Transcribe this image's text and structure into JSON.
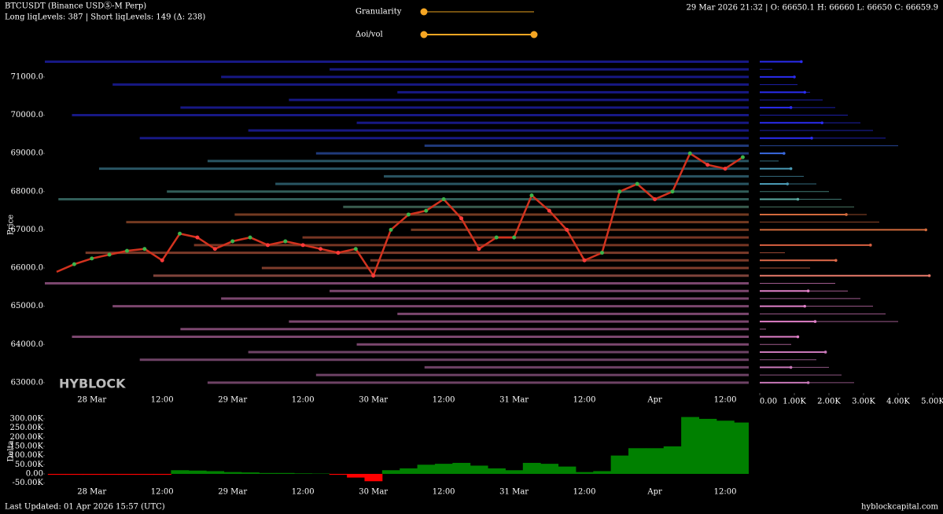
{
  "header": {
    "title": "BTCUSDT (Binance USDⓈ-M Perp)",
    "subtitle": "Long liqLevels: 387 | Short liqLevels: 149 (Δ: 238)",
    "ohlc": "29 Mar 2026 21:32 | O: 66650.1 H: 66660 L: 66650 C: 66659.9"
  },
  "controls": {
    "granularity": "Granularity",
    "oi_vol": "Δoi/vol"
  },
  "footer": {
    "updated": "Last Updated: 01 Apr 2026 15:57 (UTC)",
    "site": "hyblockcapital.com",
    "watermark": "HYBLOCK"
  },
  "chart_data": [
    {
      "type": "line",
      "y_label": "Price",
      "categories": [
        null,
        null,
        "28 Mar",
        null,
        null,
        null,
        "12:00",
        null,
        null,
        null,
        "29 Mar",
        null,
        null,
        null,
        "12:00",
        null,
        null,
        null,
        "30 Mar",
        null,
        null,
        null,
        "12:00",
        null,
        null,
        null,
        "31 Mar",
        null,
        null,
        null,
        "12:00",
        null,
        null,
        null,
        "Apr",
        null,
        null,
        null,
        "12:00",
        null
      ],
      "series": [
        {
          "color": "#d2321e",
          "values": [
            65900,
            66100,
            66250,
            66350,
            66450,
            66500,
            66200,
            66900,
            66800,
            66500,
            66700,
            66800,
            66600,
            66700,
            66600,
            66500,
            66400,
            66500,
            65800,
            67000,
            67400,
            67500,
            67800,
            67300,
            66500,
            66800,
            66800,
            67900,
            67500,
            67000,
            66200,
            66400,
            68000,
            68200,
            67800,
            68000,
            69000,
            68700,
            68600,
            68900
          ]
        }
      ],
      "levels": [
        {
          "price": 71400,
          "color": "#2a2cf0"
        },
        {
          "price": 71200,
          "color": "#2a2cf0"
        },
        {
          "price": 71000,
          "color": "#2a2cf0"
        },
        {
          "price": 70800,
          "color": "#2a2cf0"
        },
        {
          "price": 70600,
          "color": "#2a2cf0"
        },
        {
          "price": 70400,
          "color": "#2a2cf0"
        },
        {
          "price": 70200,
          "color": "#2a2cf0"
        },
        {
          "price": 70000,
          "color": "#2a2cf0"
        },
        {
          "price": 69800,
          "color": "#2a2cf0"
        },
        {
          "price": 69600,
          "color": "#2a2cf0"
        },
        {
          "price": 69400,
          "color": "#2a2cf0"
        },
        {
          "price": 69200,
          "color": "#3a6ae0"
        },
        {
          "price": 69000,
          "color": "#3a6ae0"
        },
        {
          "price": 68800,
          "color": "#4a9ab4"
        },
        {
          "price": 68600,
          "color": "#4a9ab4"
        },
        {
          "price": 68400,
          "color": "#4a9ab4"
        },
        {
          "price": 68200,
          "color": "#4a9ab4"
        },
        {
          "price": 68000,
          "color": "#5aaaa0"
        },
        {
          "price": 67800,
          "color": "#5aaaa0"
        },
        {
          "price": 67600,
          "color": "#6aaa90"
        },
        {
          "price": 67400,
          "color": "#d26a3c"
        },
        {
          "price": 67200,
          "color": "#d26a3c"
        },
        {
          "price": 67000,
          "color": "#d26a3c"
        },
        {
          "price": 66800,
          "color": "#d86040"
        },
        {
          "price": 66600,
          "color": "#d86040"
        },
        {
          "price": 66400,
          "color": "#e06a4a"
        },
        {
          "price": 66200,
          "color": "#e06a4a"
        },
        {
          "price": 66000,
          "color": "#e87050"
        },
        {
          "price": 65800,
          "color": "#e87a6a"
        },
        {
          "price": 65600,
          "color": "#e080c8"
        },
        {
          "price": 65400,
          "color": "#e080c8"
        },
        {
          "price": 65200,
          "color": "#e080c8"
        },
        {
          "price": 65000,
          "color": "#e080c8"
        },
        {
          "price": 64800,
          "color": "#e080c8"
        },
        {
          "price": 64600,
          "color": "#e080c8"
        },
        {
          "price": 64400,
          "color": "#e080c8"
        },
        {
          "price": 64200,
          "color": "#e080c8"
        },
        {
          "price": 64000,
          "color": "#e080c8"
        },
        {
          "price": 63800,
          "color": "#c878b8"
        },
        {
          "price": 63600,
          "color": "#c878b8"
        },
        {
          "price": 63400,
          "color": "#c878b8"
        },
        {
          "price": 63200,
          "color": "#c878b8"
        },
        {
          "price": 63000,
          "color": "#c878b8"
        }
      ],
      "ylim": [
        62730,
        71780
      ],
      "yticks": [
        {
          "value": 63000,
          "label": "63000.0"
        },
        {
          "value": 64000,
          "label": "64000.0"
        },
        {
          "value": 65000,
          "label": "65000.0"
        },
        {
          "value": 66000,
          "label": "66000.0"
        },
        {
          "value": 67000,
          "label": "67000.0"
        },
        {
          "value": 68000,
          "label": "68000.0"
        },
        {
          "value": 69000,
          "label": "69000.0"
        },
        {
          "value": 70000,
          "label": "70000.0"
        },
        {
          "value": 71000,
          "label": "71000.0"
        }
      ]
    },
    {
      "type": "hbar",
      "y": [
        71400,
        71000,
        70600,
        70200,
        69800,
        69400,
        69000,
        68600,
        68200,
        67800,
        67400,
        67000,
        66600,
        66200,
        65800,
        65400,
        65000,
        64600,
        64200,
        63800,
        63400,
        63000
      ],
      "values": [
        1200,
        1000,
        1300,
        900,
        1800,
        1500,
        700,
        900,
        800,
        1100,
        2500,
        4800,
        3200,
        2200,
        4900,
        1400,
        1300,
        1600,
        1100,
        1900,
        900,
        1400
      ],
      "ylim": [
        62730,
        71780
      ],
      "xlim": [
        0,
        5000
      ],
      "xticks": [
        {
          "value": 0,
          "label": "0.00"
        },
        {
          "value": 1000,
          "label": "1.00K"
        },
        {
          "value": 2000,
          "label": "2.00K"
        },
        {
          "value": 3000,
          "label": "3.00K"
        },
        {
          "value": 4000,
          "label": "4.00K"
        },
        {
          "value": 5000,
          "label": "5.00K"
        }
      ]
    },
    {
      "type": "area",
      "y_label": "Delta",
      "color": "#008000",
      "negative_color": "#ff0000",
      "values": [
        -5000,
        -5000,
        -5000,
        -5000,
        -5000,
        -5000,
        -5000,
        20000,
        18000,
        15000,
        10000,
        8000,
        5000,
        5000,
        3000,
        2000,
        -5000,
        -20000,
        -40000,
        20000,
        30000,
        50000,
        55000,
        60000,
        45000,
        30000,
        20000,
        60000,
        55000,
        40000,
        10000,
        15000,
        100000,
        140000,
        140000,
        150000,
        310000,
        300000,
        290000,
        280000
      ],
      "ylim": [
        -73000,
        334000
      ],
      "yticks": [
        {
          "value": -50000,
          "label": "-50.00K"
        },
        {
          "value": 0,
          "label": "0.00"
        },
        {
          "value": 50000,
          "label": "50.00K"
        },
        {
          "value": 100000,
          "label": "100.00K"
        },
        {
          "value": 150000,
          "label": "150.00K"
        },
        {
          "value": 200000,
          "label": "200.00K"
        },
        {
          "value": 250000,
          "label": "250.00K"
        },
        {
          "value": 300000,
          "label": "300.00K"
        }
      ]
    }
  ]
}
